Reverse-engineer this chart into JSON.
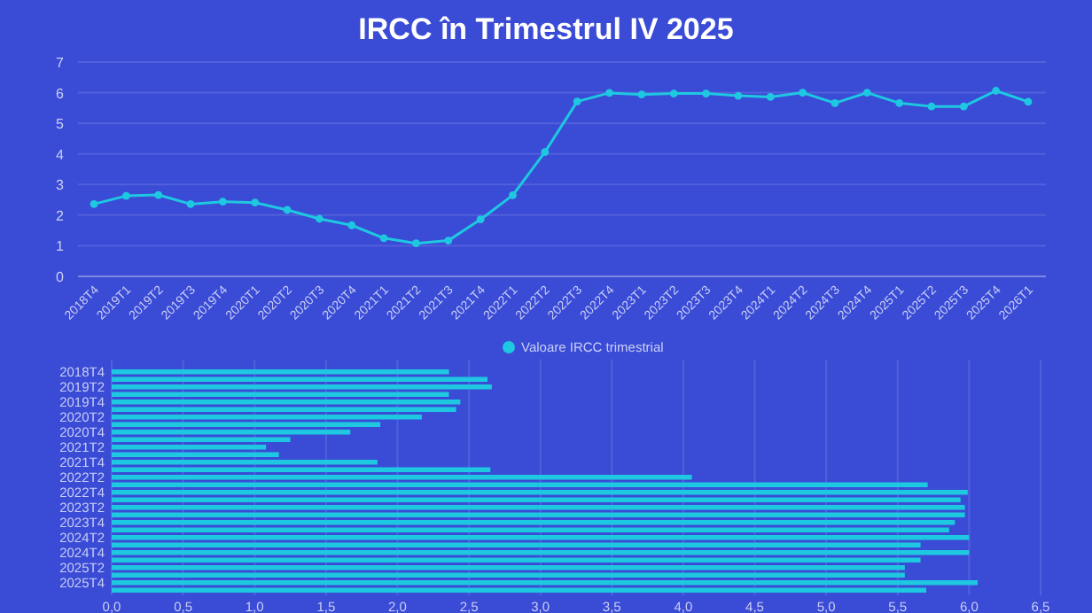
{
  "chart_data": [
    {
      "type": "line",
      "title": "IRCC în Trimestrul IV 2025",
      "categories": [
        "2018T4",
        "2019T1",
        "2019T2",
        "2019T3",
        "2019T4",
        "2020T1",
        "2020T2",
        "2020T3",
        "2020T4",
        "2021T1",
        "2021T2",
        "2021T3",
        "2021T4",
        "2022T1",
        "2022T2",
        "2022T3",
        "2022T4",
        "2023T1",
        "2023T2",
        "2023T3",
        "2023T4",
        "2024T1",
        "2024T2",
        "2024T3",
        "2024T4",
        "2025T1",
        "2025T2",
        "2025T3",
        "2025T4",
        "2026T1"
      ],
      "series": [
        {
          "color": "#1ec8e0",
          "values": [
            2.36,
            2.63,
            2.66,
            2.36,
            2.44,
            2.41,
            2.17,
            1.88,
            1.67,
            1.25,
            1.08,
            1.17,
            1.86,
            2.65,
            4.06,
            5.71,
            5.99,
            5.94,
            5.97,
            5.97,
            5.9,
            5.86,
            6.0,
            5.66,
            6.0,
            5.66,
            5.55,
            5.55,
            6.06,
            5.7
          ]
        }
      ],
      "ylim": [
        0,
        7
      ],
      "yticks": [
        0,
        1,
        2,
        3,
        4,
        5,
        6,
        7
      ],
      "grid": "y",
      "marker": "circle",
      "line_style": "solid"
    },
    {
      "type": "bar",
      "orientation": "horizontal",
      "categories": [
        "2018T4",
        null,
        "2019T2",
        null,
        "2019T4",
        null,
        "2020T2",
        null,
        "2020T4",
        null,
        "2021T2",
        null,
        "2021T4",
        null,
        "2022T2",
        null,
        "2022T4",
        null,
        "2023T2",
        null,
        "2023T4",
        null,
        "2024T2",
        null,
        "2024T4",
        null,
        "2025T2",
        null,
        "2025T4",
        null
      ],
      "series": [
        {
          "name": "Valoare IRCC trimestrial",
          "color": "#1ec8e0",
          "values": [
            2.36,
            2.63,
            2.66,
            2.36,
            2.44,
            2.41,
            2.17,
            1.88,
            1.67,
            1.25,
            1.08,
            1.17,
            1.86,
            2.65,
            4.06,
            5.71,
            5.99,
            5.94,
            5.97,
            5.97,
            5.9,
            5.86,
            6.0,
            5.66,
            6.0,
            5.66,
            5.55,
            5.55,
            6.06,
            5.7
          ]
        }
      ],
      "xlim": [
        0,
        6.5
      ],
      "xticks": [
        {
          "value": 0,
          "label": "0,0"
        },
        {
          "value": 0.5,
          "label": "0,5"
        },
        {
          "value": 1,
          "label": "1,0"
        },
        {
          "value": 1.5,
          "label": "1,5"
        },
        {
          "value": 2,
          "label": "2,0"
        },
        {
          "value": 2.5,
          "label": "2,5"
        },
        {
          "value": 3,
          "label": "3,0"
        },
        {
          "value": 3.5,
          "label": "3,5"
        },
        {
          "value": 4,
          "label": "4,0"
        },
        {
          "value": 4.5,
          "label": "4,5"
        },
        {
          "value": 5,
          "label": "5,0"
        },
        {
          "value": 5.5,
          "label": "5,5"
        },
        {
          "value": 6,
          "label": "6,0"
        },
        {
          "value": 6.5,
          "label": "6,5"
        }
      ],
      "grid": "x",
      "legend": "top"
    }
  ]
}
